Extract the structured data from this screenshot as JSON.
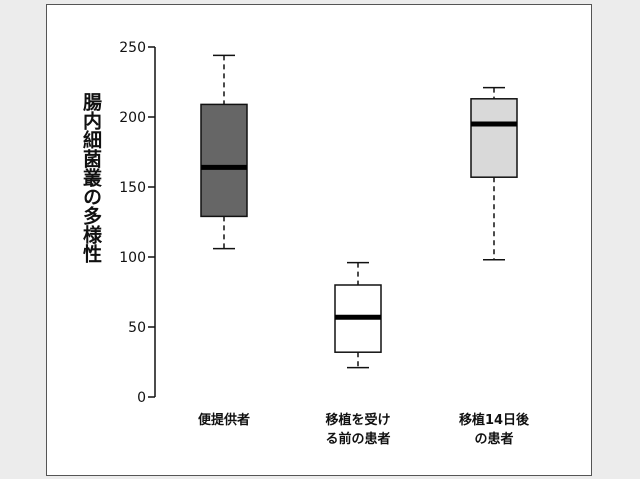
{
  "chart_data": {
    "type": "box",
    "ylabel": "腸内細菌叢の多様性",
    "ylim": [
      0,
      250
    ],
    "yticks": [
      0,
      50,
      100,
      150,
      200,
      250
    ],
    "categories": [
      [
        "便提供者"
      ],
      [
        "移植を受け",
        "る前の患者"
      ],
      [
        "移植14日後",
        "の患者"
      ]
    ],
    "boxes": [
      {
        "min": 106,
        "q1": 129,
        "median": 164,
        "q3": 209,
        "max": 244,
        "color": "#666666"
      },
      {
        "min": 21,
        "q1": 32,
        "median": 57,
        "q3": 80,
        "max": 96,
        "color": "#ffffff"
      },
      {
        "min": 98,
        "q1": 157,
        "median": 195,
        "q3": 213,
        "max": 221,
        "color": "#d9d9d9"
      }
    ],
    "grid": false
  }
}
